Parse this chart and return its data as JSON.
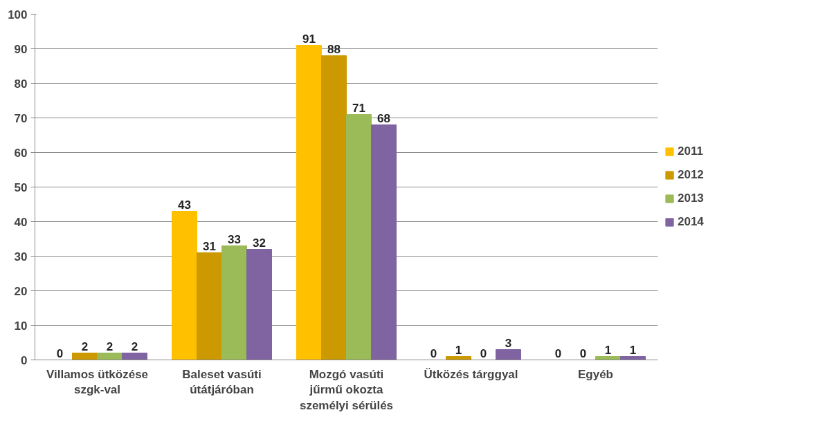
{
  "chart_data": {
    "type": "bar",
    "categories": [
      "Villamos ütközése\nszgk-val",
      "Baleset vasúti\nútátjáróban",
      "Mozgó vasúti\njűrmű okozta\nszemélyi sérülés",
      "Ütközés tárggyal",
      "Egyéb"
    ],
    "series": [
      {
        "name": "2011",
        "color": "#ffc000",
        "values": [
          0,
          43,
          91,
          0,
          0
        ]
      },
      {
        "name": "2012",
        "color": "#cc9900",
        "values": [
          2,
          31,
          88,
          1,
          0
        ]
      },
      {
        "name": "2013",
        "color": "#9bbb59",
        "values": [
          2,
          33,
          71,
          0,
          1
        ]
      },
      {
        "name": "2014",
        "color": "#8064a2",
        "values": [
          2,
          32,
          68,
          3,
          1
        ]
      }
    ],
    "ylim": [
      0,
      100
    ],
    "yticks": [
      0,
      10,
      20,
      30,
      40,
      50,
      60,
      70,
      80,
      90,
      100
    ],
    "grid": "y",
    "legend": "right",
    "data_labels": true
  }
}
